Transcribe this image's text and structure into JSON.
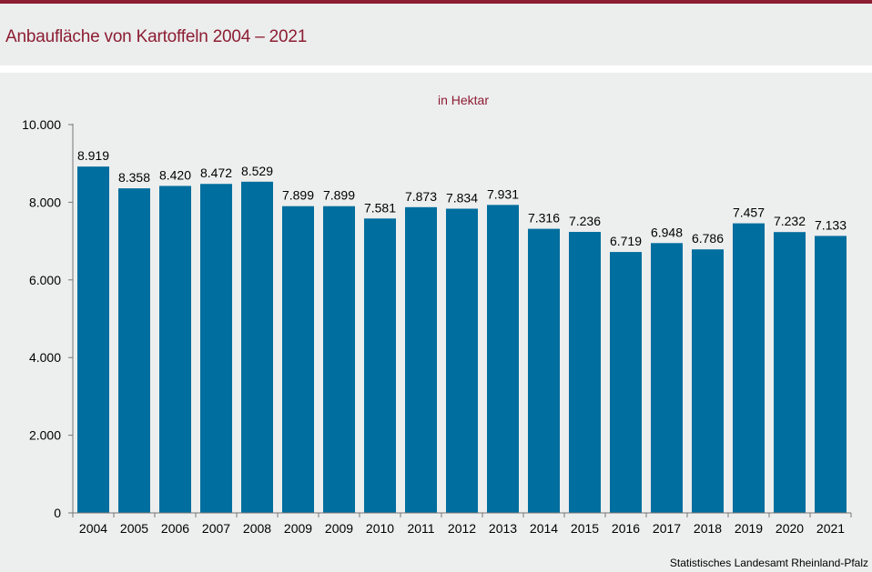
{
  "header": {
    "title": "Anbaufläche von Kartoffeln 2004 – 2021"
  },
  "source": "Statistisches Landesamt  Rheinland-Pfalz",
  "colors": {
    "accent": "#8c1d33",
    "bar": "#006e9e",
    "background": "#edeeee"
  },
  "chart_data": {
    "type": "bar",
    "title": "Anbaufläche von Kartoffeln 2004 – 2021",
    "subtitle": "in Hektar",
    "categories": [
      "2004",
      "2005",
      "2006",
      "2007",
      "2008",
      "2009",
      "2009",
      "2010",
      "2011",
      "2012",
      "2013",
      "2014",
      "2015",
      "2016",
      "2017",
      "2018",
      "2019",
      "2020",
      "2021"
    ],
    "values": [
      8919,
      8358,
      8420,
      8472,
      8529,
      7899,
      7899,
      7581,
      7873,
      7834,
      7931,
      7316,
      7236,
      6719,
      6948,
      6786,
      7457,
      7232,
      7133
    ],
    "value_labels": [
      "8.919",
      "8.358",
      "8.420",
      "8.472",
      "8.529",
      "7.899",
      "7.899",
      "7.581",
      "7.873",
      "7.834",
      "7.931",
      "7.316",
      "7.236",
      "6.719",
      "6.948",
      "6.786",
      "7.457",
      "7.232",
      "7.133"
    ],
    "y_ticks": [
      0,
      2000,
      4000,
      6000,
      8000,
      10000
    ],
    "y_tick_labels": [
      "0",
      "2.000",
      "4.000",
      "6.000",
      "8.000",
      "10.000"
    ],
    "ylim": [
      0,
      10000
    ],
    "xlabel": "",
    "ylabel": "",
    "grid": false,
    "legend": "none"
  }
}
